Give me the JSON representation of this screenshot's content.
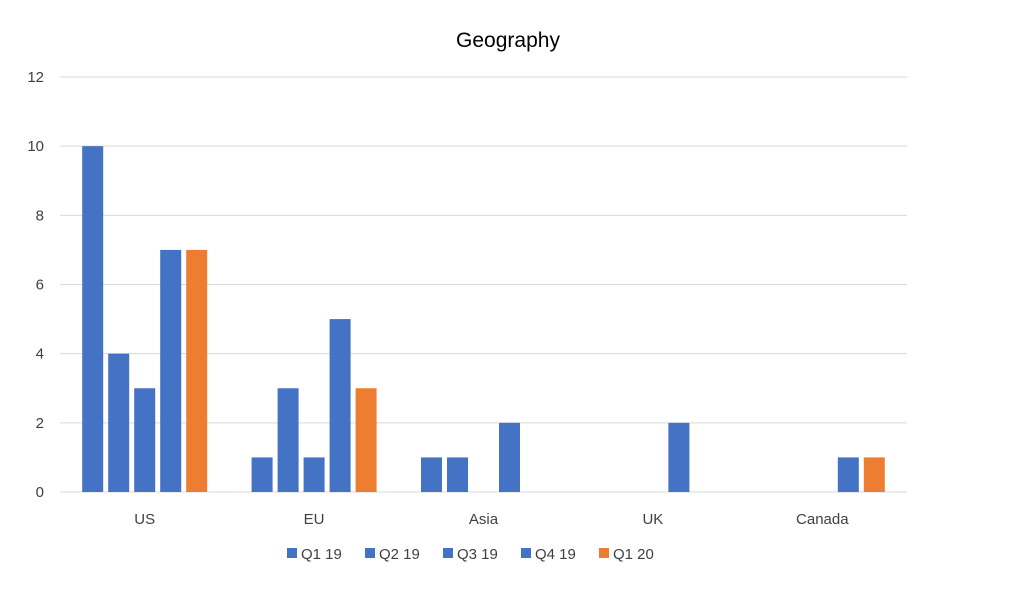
{
  "chart_data": {
    "type": "bar",
    "title": "Geography",
    "xlabel": "",
    "ylabel": "",
    "categories": [
      "US",
      "EU",
      "Asia",
      "UK",
      "Canada"
    ],
    "series": [
      {
        "name": "Q1 19",
        "color": "#4472c4",
        "values": [
          10,
          1,
          1,
          null,
          null
        ]
      },
      {
        "name": "Q2 19",
        "color": "#4472c4",
        "values": [
          4,
          3,
          1,
          null,
          null
        ]
      },
      {
        "name": "Q3 19",
        "color": "#4472c4",
        "values": [
          3,
          1,
          null,
          null,
          null
        ]
      },
      {
        "name": "Q4 19",
        "color": "#4472c4",
        "values": [
          7,
          5,
          2,
          2,
          1
        ]
      },
      {
        "name": "Q1 20",
        "color": "#ed7d31",
        "values": [
          7,
          3,
          null,
          null,
          1
        ]
      }
    ],
    "ylim": [
      0,
      12
    ],
    "yticks": [
      0,
      2,
      4,
      6,
      8,
      10,
      12
    ],
    "grid": true,
    "legend_position": "bottom"
  }
}
